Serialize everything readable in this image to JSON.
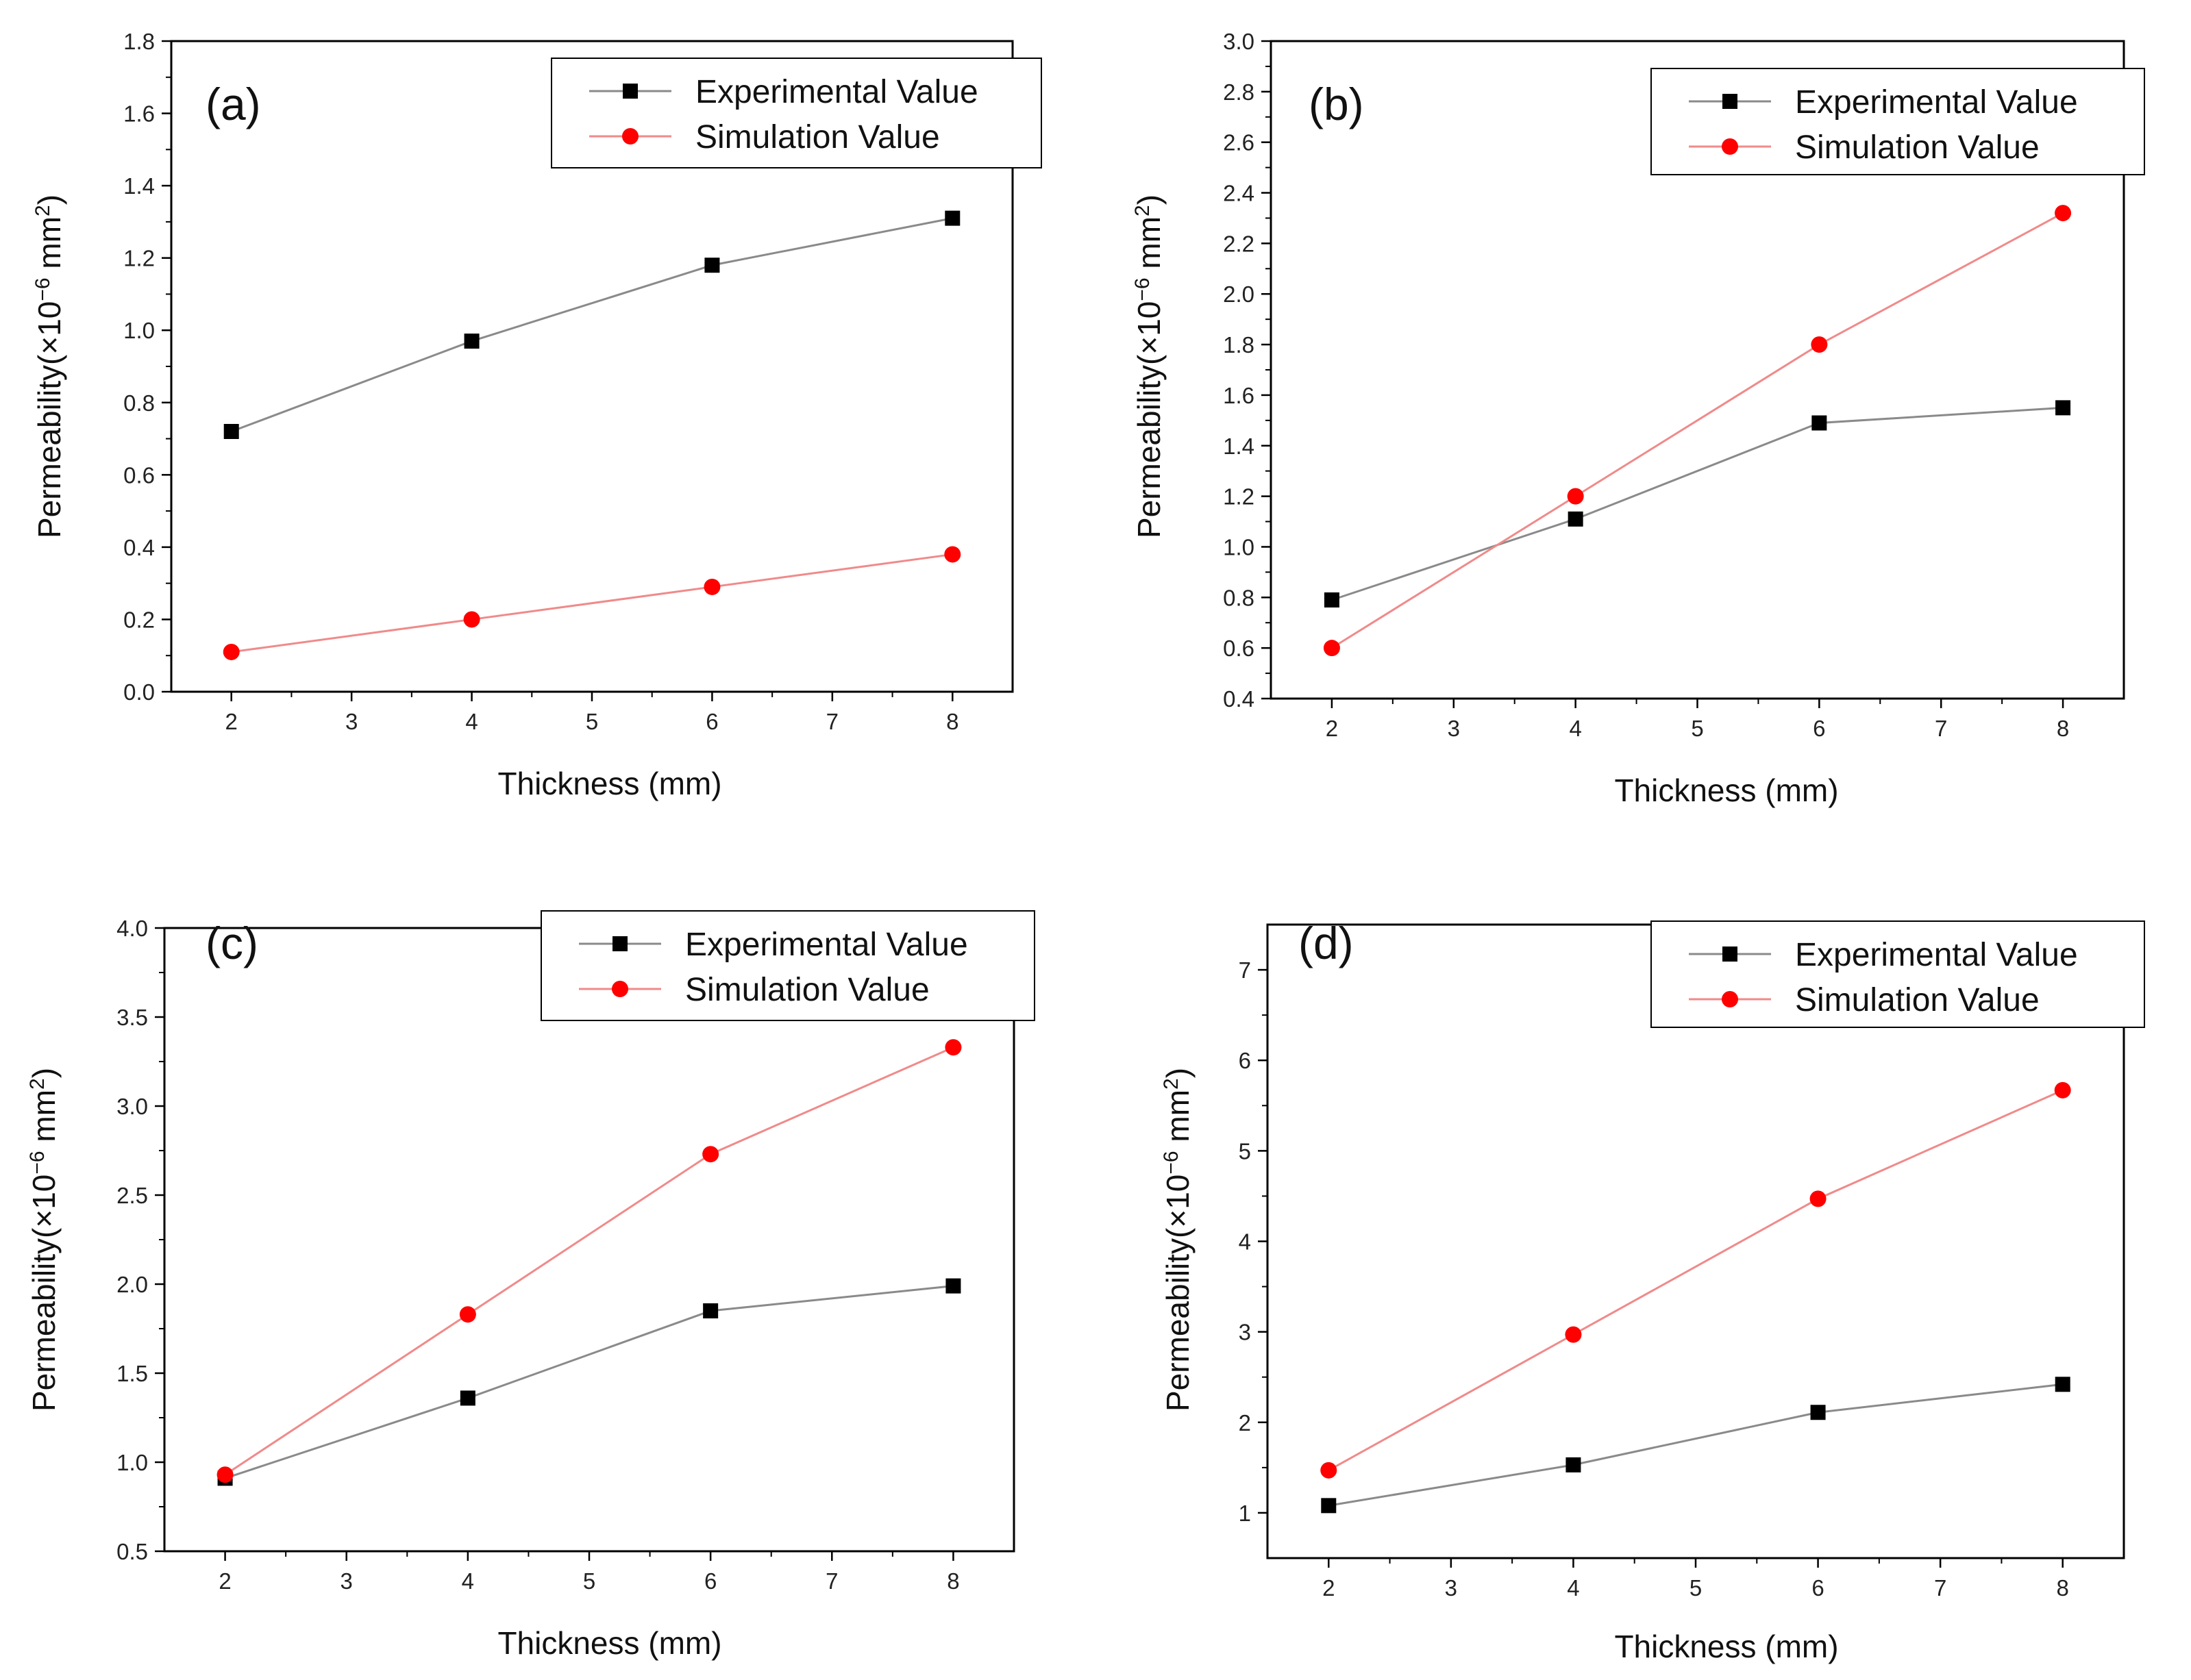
{
  "figure": {
    "ylabel_prefix": "Permeability(×10",
    "ylabel_exp": "−6",
    "ylabel_unit": " mm",
    "ylabel_sq": "2",
    "ylabel_close": ")"
  },
  "chart_data": [
    {
      "type": "line",
      "panel": "(a)",
      "xlabel": "Thickness (mm)",
      "x": [
        2,
        4,
        6,
        8
      ],
      "xticks": [
        "2",
        "3",
        "4",
        "5",
        "6",
        "7",
        "8"
      ],
      "xlim": [
        1.5,
        8.5
      ],
      "ylim": [
        0.0,
        1.8
      ],
      "yticks": [
        "0.0",
        "0.2",
        "0.4",
        "0.6",
        "0.8",
        "1.0",
        "1.2",
        "1.4",
        "1.6",
        "1.8"
      ],
      "series": [
        {
          "name": "Experimental Value",
          "color": "#8a8a8a",
          "marker": "square",
          "marker_color": "#000000",
          "values": [
            0.72,
            0.97,
            1.18,
            1.31
          ]
        },
        {
          "name": "Simulation Value",
          "color": "#f08a8a",
          "marker": "circle",
          "marker_color": "#ff0000",
          "values": [
            0.11,
            0.2,
            0.29,
            0.38
          ]
        }
      ]
    },
    {
      "type": "line",
      "panel": "(b)",
      "xlabel": "Thickness (mm)",
      "x": [
        2,
        4,
        6,
        8
      ],
      "xticks": [
        "2",
        "3",
        "4",
        "5",
        "6",
        "7",
        "8"
      ],
      "xlim": [
        1.5,
        8.5
      ],
      "ylim": [
        0.4,
        3.0
      ],
      "yticks": [
        "0.4",
        "0.6",
        "0.8",
        "1.0",
        "1.2",
        "1.4",
        "1.6",
        "1.8",
        "2.0",
        "2.2",
        "2.4",
        "2.6",
        "2.8",
        "3.0"
      ],
      "series": [
        {
          "name": "Experimental Value",
          "color": "#8a8a8a",
          "marker": "square",
          "marker_color": "#000000",
          "values": [
            0.79,
            1.11,
            1.49,
            1.55
          ]
        },
        {
          "name": "Simulation Value",
          "color": "#f08a8a",
          "marker": "circle",
          "marker_color": "#ff0000",
          "values": [
            0.6,
            1.2,
            1.8,
            2.32
          ]
        }
      ]
    },
    {
      "type": "line",
      "panel": "(c)",
      "xlabel": "Thickness (mm)",
      "x": [
        2,
        4,
        6,
        8
      ],
      "xticks": [
        "2",
        "3",
        "4",
        "5",
        "6",
        "7",
        "8"
      ],
      "xlim": [
        1.5,
        8.5
      ],
      "ylim": [
        0.5,
        4.0
      ],
      "yticks": [
        "0.5",
        "1.0",
        "1.5",
        "2.0",
        "2.5",
        "3.0",
        "3.5",
        "4.0"
      ],
      "series": [
        {
          "name": "Experimental Value",
          "color": "#8a8a8a",
          "marker": "square",
          "marker_color": "#000000",
          "values": [
            0.91,
            1.36,
            1.85,
            1.99
          ]
        },
        {
          "name": "Simulation Value",
          "color": "#f08a8a",
          "marker": "circle",
          "marker_color": "#ff0000",
          "values": [
            0.93,
            1.83,
            2.73,
            3.33
          ]
        }
      ]
    },
    {
      "type": "line",
      "panel": "(d)",
      "xlabel": "Thickness (mm)",
      "x": [
        2,
        4,
        6,
        8
      ],
      "xticks": [
        "2",
        "3",
        "4",
        "5",
        "6",
        "7",
        "8"
      ],
      "xlim": [
        1.5,
        8.5
      ],
      "ylim": [
        0.5,
        7.5
      ],
      "yticks": [
        "1",
        "2",
        "3",
        "4",
        "5",
        "6",
        "7"
      ],
      "series": [
        {
          "name": "Experimental Value",
          "color": "#8a8a8a",
          "marker": "square",
          "marker_color": "#000000",
          "values": [
            1.08,
            1.53,
            2.11,
            2.42
          ]
        },
        {
          "name": "Simulation Value",
          "color": "#f08a8a",
          "marker": "circle",
          "marker_color": "#ff0000",
          "values": [
            1.47,
            2.97,
            4.47,
            5.67
          ]
        }
      ]
    }
  ]
}
